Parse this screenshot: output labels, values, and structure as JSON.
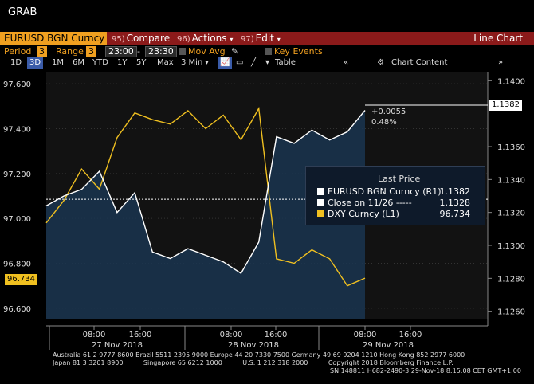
{
  "window": {
    "title": "GRAB"
  },
  "toolbar": {
    "ticker": "EURUSD BGN Curncy",
    "compare_num": "95)",
    "compare": "Compare",
    "actions_num": "96)",
    "actions": "Actions",
    "edit_num": "97)",
    "edit": "Edit",
    "chart_type": "Line Chart"
  },
  "row2": {
    "period_label": "Period",
    "period_value": "3",
    "range_label": "Range",
    "range_value": "3",
    "range_start": "23:00",
    "range_end": "23:30",
    "mov_avg": "Mov Avg",
    "key_events": "Key Events"
  },
  "row3": {
    "buttons": [
      "1D",
      "3D",
      "1M",
      "6M",
      "YTD",
      "1Y",
      "5Y",
      "Max",
      "3 Min"
    ],
    "active": "3D",
    "table": "Table",
    "chart_content": "Chart Content"
  },
  "chart": {
    "left_axis": [
      "97.600",
      "97.400",
      "97.200",
      "97.000",
      "96.800",
      "96.600"
    ],
    "right_axis": [
      "1.1400",
      "1.1360",
      "1.1340",
      "1.1320",
      "1.1300",
      "1.1280",
      "1.1260"
    ],
    "x_times": [
      "08:00",
      "16:00",
      "08:00",
      "16:00",
      "08:00",
      "16:00"
    ],
    "x_dates": [
      "27 Nov 2018",
      "28 Nov 2018",
      "29 Nov 2018"
    ],
    "last_price_tag": "1.1382",
    "dxy_tag": "96.734",
    "change_abs": "+0.0055",
    "change_pct": "0.48%"
  },
  "legend": {
    "title": "Last Price",
    "rows": [
      {
        "label": "EURUSD BGN Curncy  (R1)",
        "value": "1.1382",
        "color": "#ffffff"
      },
      {
        "label": "Close on 11/26 -----",
        "value": "1.1328",
        "color": "#ffffff"
      },
      {
        "label": "DXY Curncy  (L1)",
        "value": "96.734",
        "color": "#f0c020"
      }
    ]
  },
  "footer": {
    "line1": "Australia 61 2 9777 8600 Brazil 5511 2395 9000 Europe 44 20 7330 7500 Germany 49 69 9204 1210 Hong Kong 852 2977 6000",
    "line2": "Japan 81 3 3201 8900          Singapore 65 6212 1000          U.S. 1 212 318 2000          Copyright 2018 Bloomberg Finance L.P.",
    "line3": "SN 148811 H682-2490-3 29-Nov-18  8:15:08 CET  GMT+1:00"
  },
  "chart_data": {
    "type": "line",
    "series": [
      {
        "name": "EURUSD BGN Curncy",
        "axis": "right",
        "values": [
          1.1324,
          1.133,
          1.1334,
          1.1345,
          1.132,
          1.1332,
          1.1296,
          1.1292,
          1.1298,
          1.1294,
          1.129,
          1.1283,
          1.1302,
          1.1366,
          1.1362,
          1.137,
          1.1364,
          1.1369,
          1.1382
        ]
      },
      {
        "name": "DXY Curncy",
        "axis": "left",
        "values": [
          96.98,
          97.08,
          97.22,
          97.13,
          97.36,
          97.47,
          97.44,
          97.42,
          97.48,
          97.4,
          97.46,
          97.35,
          97.49,
          96.82,
          96.8,
          96.86,
          96.82,
          96.7,
          96.734
        ]
      }
    ],
    "ylim_left": [
      96.55,
      97.65
    ],
    "ylim_right": [
      1.1255,
      1.1405
    ]
  }
}
